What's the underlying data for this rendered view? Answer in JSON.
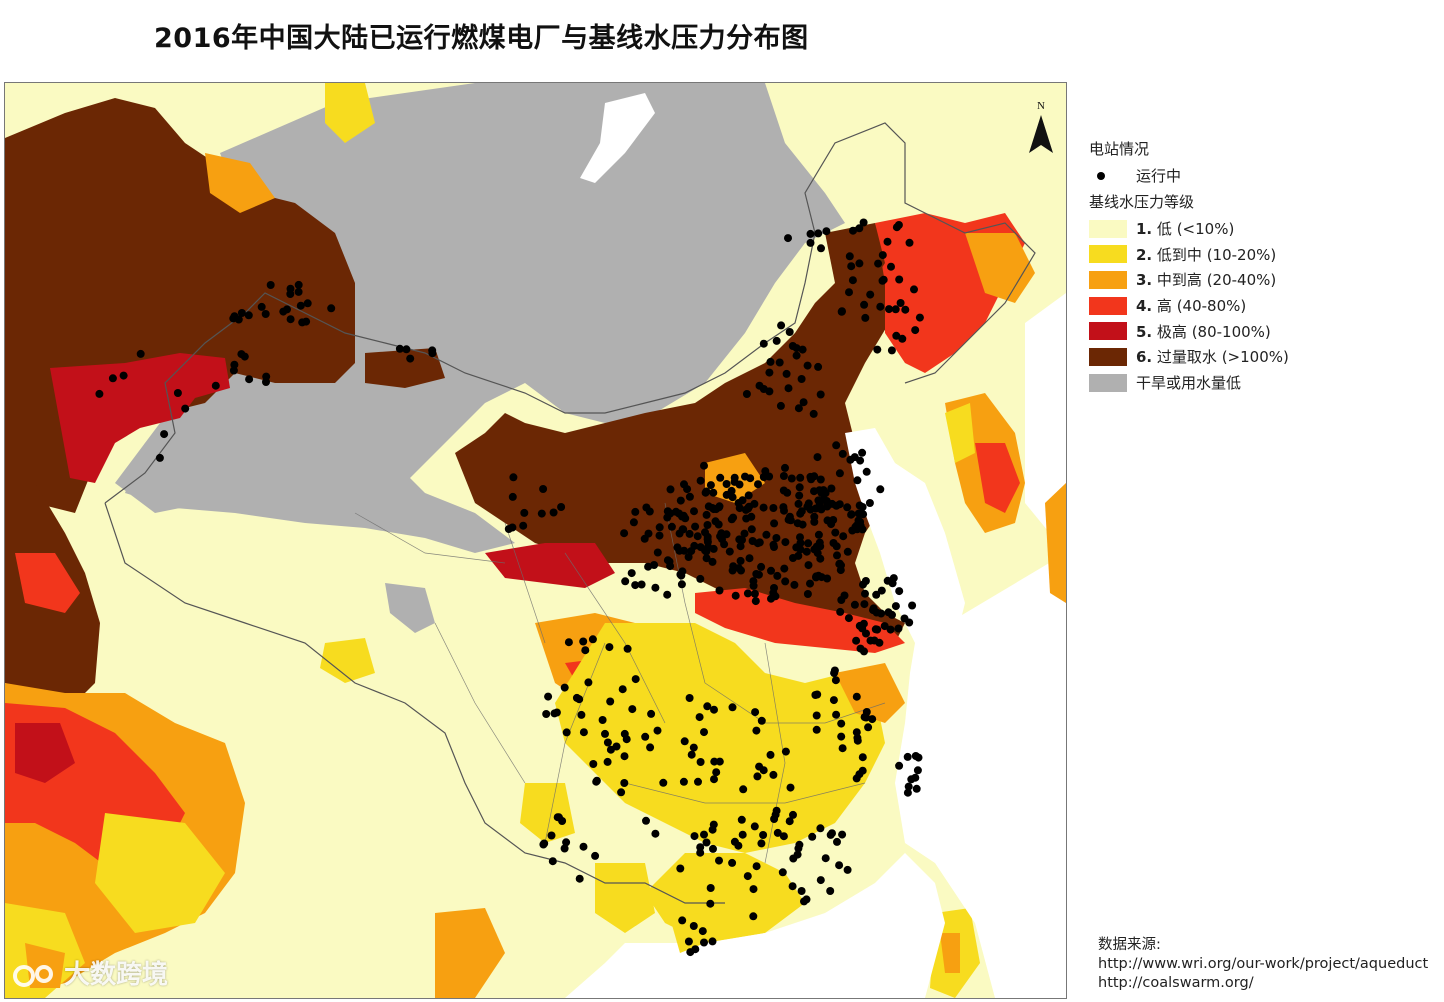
{
  "title": "2016年中国大陆已运行燃煤电厂与基线水压力分布图",
  "north_arrow": "N",
  "colors": {
    "level1": "#fafac2",
    "level2": "#f7dc1f",
    "level3": "#f7a011",
    "level4": "#f2361c",
    "level5": "#c21019",
    "level6": "#6b2704",
    "arid": "#b0b0b0",
    "water": "#ffffff",
    "boundary": "#555555",
    "plant": "#000000"
  },
  "legend": {
    "station_heading": "电站情况",
    "station_item": "运行中",
    "stress_heading": "基线水压力等级",
    "items": [
      {
        "num": "1.",
        "label": "低 (<10%)",
        "color_key": "level1"
      },
      {
        "num": "2.",
        "label": "低到中 (10-20%)",
        "color_key": "level2"
      },
      {
        "num": "3.",
        "label": "中到高 (20-40%)",
        "color_key": "level3"
      },
      {
        "num": "4.",
        "label": "高 (40-80%)",
        "color_key": "level4"
      },
      {
        "num": "5.",
        "label": "极高 (80-100%)",
        "color_key": "level5"
      },
      {
        "num": "6.",
        "label": "过量取水 (>100%)",
        "color_key": "level6"
      },
      {
        "num": "",
        "label": "干旱或用水量低",
        "color_key": "arid"
      }
    ]
  },
  "source": {
    "heading": "数据来源:",
    "url1": "http://www.wri.org/our-work/project/aqueduct",
    "url2": "http://coalswarm.org/"
  },
  "watermark": "大数跨境"
}
